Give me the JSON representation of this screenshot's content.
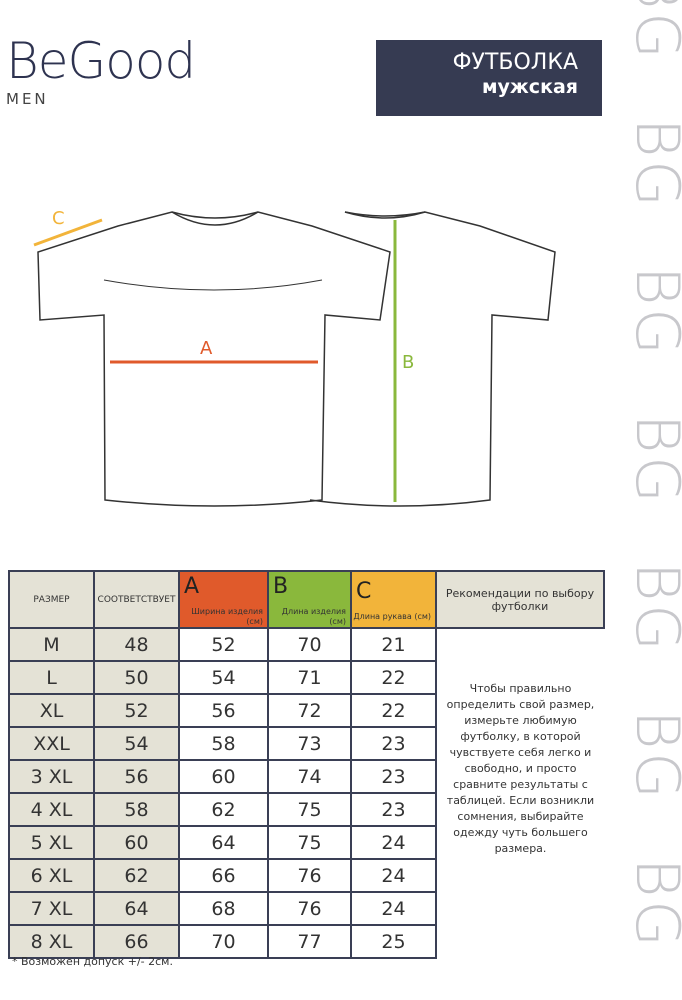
{
  "brand": {
    "name": "BeGood",
    "sub": "MEN",
    "watermark": "BG"
  },
  "title": {
    "line1": "ФУТБОЛКА",
    "line2": "мужская"
  },
  "diagram": {
    "labels": {
      "a": "A",
      "b": "B",
      "c": "C"
    },
    "colors": {
      "a": "#e05a2b",
      "b": "#8ab83c",
      "c": "#f2b43a"
    }
  },
  "table": {
    "headers": {
      "size": "РАЗМЕР",
      "corresponds": "СООТВЕТСТВУЕТ",
      "a": {
        "letter": "A",
        "text": "Ширина изделия (см)"
      },
      "b": {
        "letter": "B",
        "text": "Длина изделия (см)"
      },
      "c": {
        "letter": "C",
        "text": "Длина рукава (см)"
      }
    },
    "rows": [
      [
        "M",
        "48",
        "52",
        "70",
        "21"
      ],
      [
        "L",
        "50",
        "54",
        "71",
        "22"
      ],
      [
        "XL",
        "52",
        "56",
        "72",
        "22"
      ],
      [
        "XXL",
        "54",
        "58",
        "73",
        "23"
      ],
      [
        "3 XL",
        "56",
        "60",
        "74",
        "23"
      ],
      [
        "4 XL",
        "58",
        "62",
        "75",
        "23"
      ],
      [
        "5 XL",
        "60",
        "64",
        "75",
        "24"
      ],
      [
        "6 XL",
        "62",
        "66",
        "76",
        "24"
      ],
      [
        "7 XL",
        "64",
        "68",
        "76",
        "24"
      ],
      [
        "8 XL",
        "66",
        "70",
        "77",
        "25"
      ]
    ]
  },
  "recommendation": {
    "title": "Рекомендации по выбору футболки",
    "text": "Чтобы правильно определить свой размер, измерьте любимую футболку, в которой чувствуете себя легко и свободно, и просто сравните результаты с таблицей. Если возникли сомнения, выбирайте одежду чуть большего размера."
  },
  "footnote": "* Возможен допуск +/- 2см."
}
